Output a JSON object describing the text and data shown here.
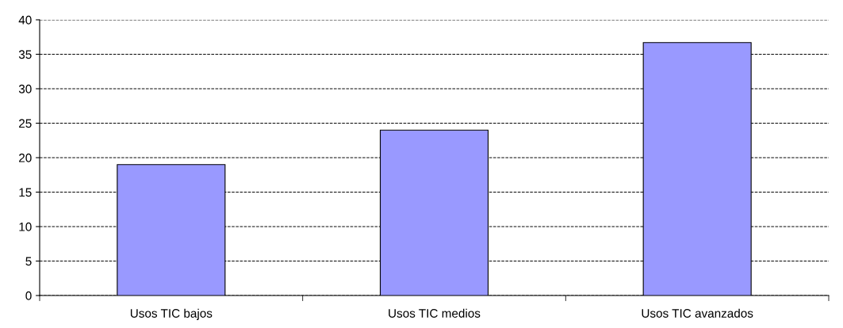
{
  "chart_data": {
    "type": "bar",
    "categories": [
      "Usos TIC bajos",
      "Usos TIC medios",
      "Usos TIC avanzados"
    ],
    "values": [
      19,
      24,
      36.7
    ],
    "color": "#9999ff",
    "ylim": [
      0,
      40
    ],
    "yticks": [
      0,
      5,
      10,
      15,
      20,
      25,
      30,
      35,
      40
    ],
    "grid": "y",
    "legend": false
  }
}
